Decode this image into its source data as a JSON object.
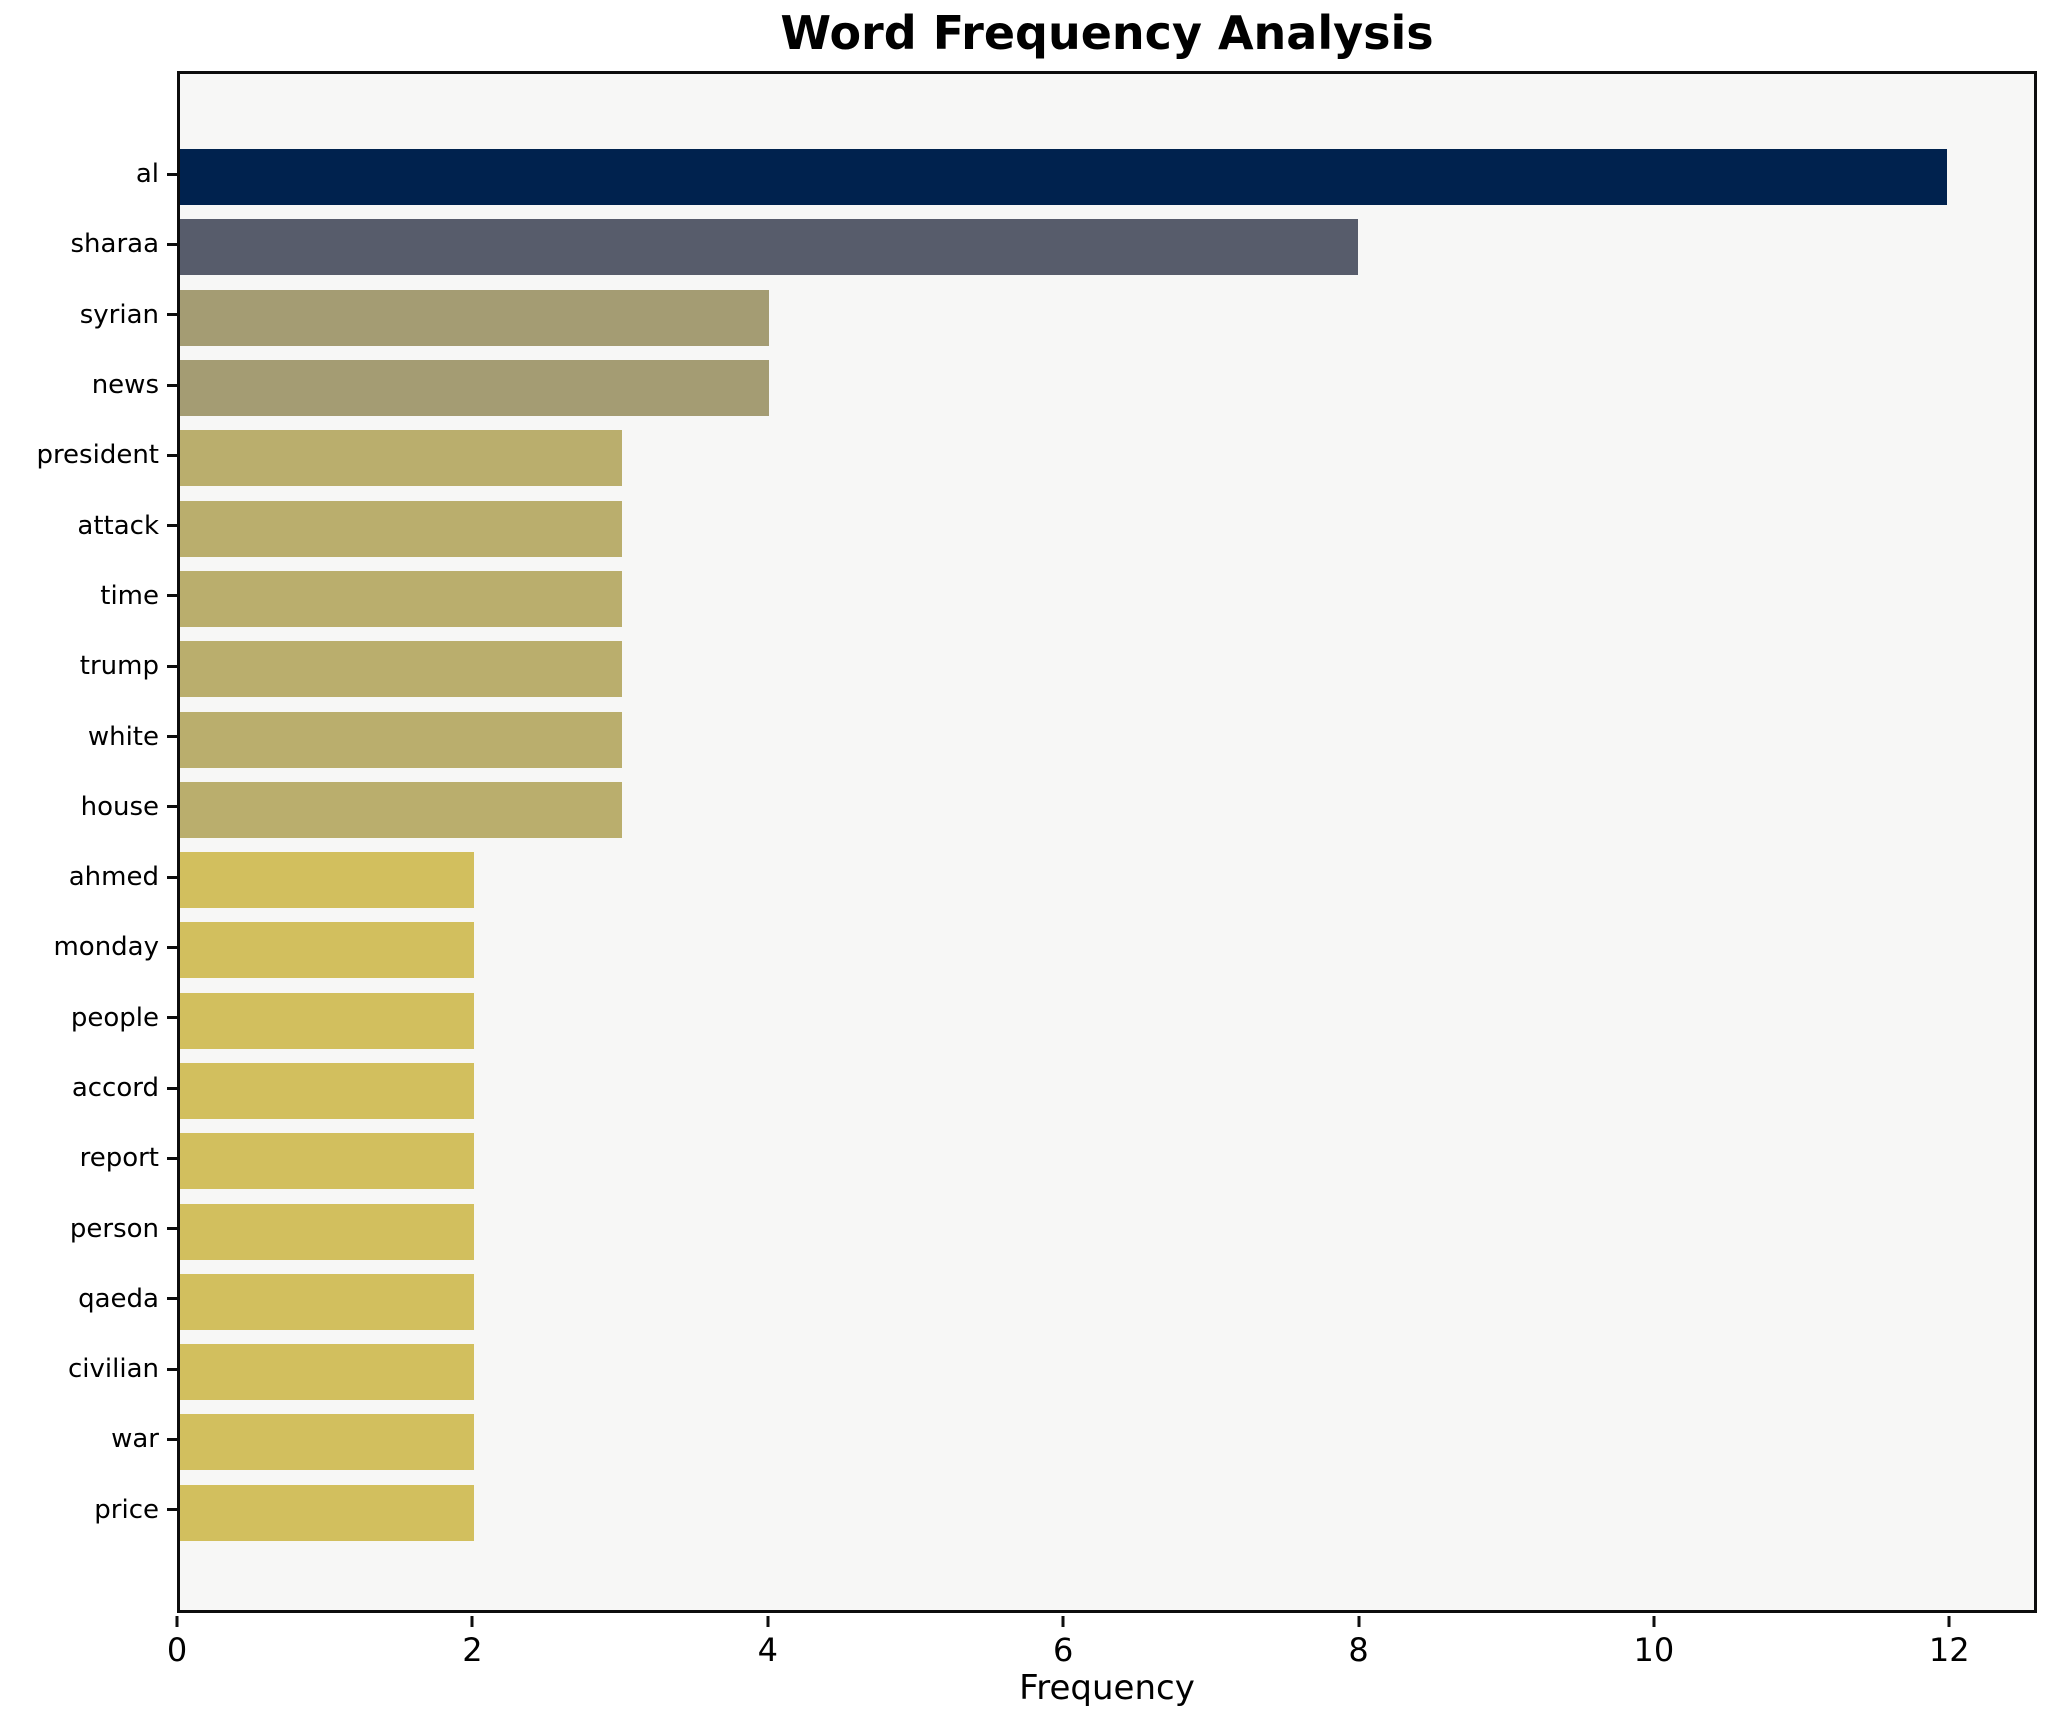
{
  "title": "Word Frequency Analysis",
  "chart_data": {
    "type": "bar",
    "orientation": "horizontal",
    "title": "Word Frequency Analysis",
    "xlabel": "Frequency",
    "ylabel": "",
    "categories": [
      "al",
      "sharaa",
      "syrian",
      "news",
      "president",
      "attack",
      "time",
      "trump",
      "white",
      "house",
      "ahmed",
      "monday",
      "people",
      "accord",
      "report",
      "person",
      "qaeda",
      "civilian",
      "war",
      "price"
    ],
    "values": [
      12,
      8,
      4,
      4,
      3,
      3,
      3,
      3,
      3,
      3,
      2,
      2,
      2,
      2,
      2,
      2,
      2,
      2,
      2,
      2
    ],
    "bar_colors": [
      "#00224e",
      "#575c6b",
      "#a49c73",
      "#a49c73",
      "#baae6d",
      "#baae6d",
      "#baae6d",
      "#baae6d",
      "#baae6d",
      "#baae6d",
      "#d2bf5e",
      "#d2bf5e",
      "#d2bf5e",
      "#d2bf5e",
      "#d2bf5e",
      "#d2bf5e",
      "#d2bf5e",
      "#d2bf5e",
      "#d2bf5e",
      "#d2bf5e"
    ],
    "xlim": [
      0,
      12.594
    ],
    "xticks": [
      0,
      2,
      4,
      6,
      8,
      10,
      12
    ],
    "grid": false,
    "legend": null,
    "plot_background": "#f7f7f6",
    "figure_background": "#ffffff",
    "spine_color": "#0d0d0d"
  }
}
